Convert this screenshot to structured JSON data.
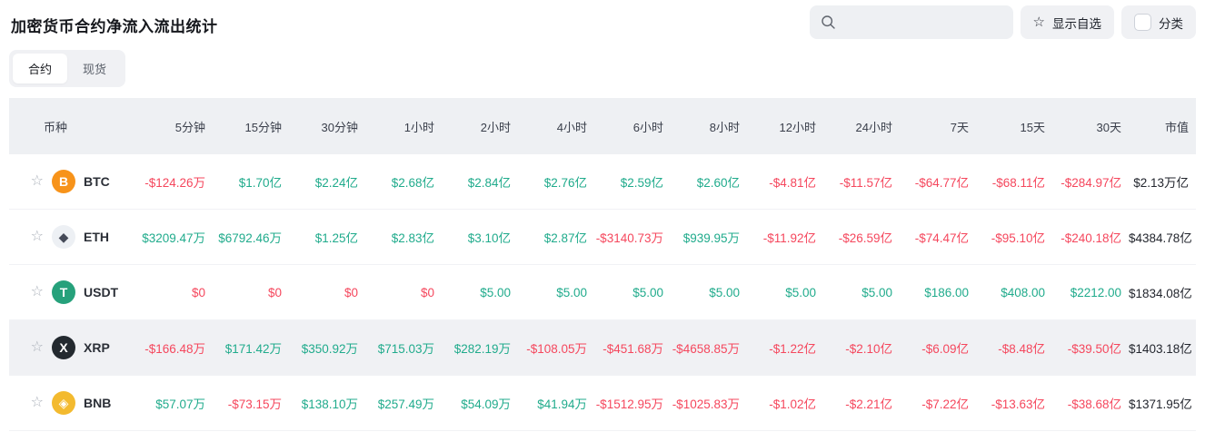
{
  "header": {
    "title": "加密货币合约净流入流出统计",
    "search": {
      "placeholder": ""
    },
    "favorites_button": "显示自选",
    "category_button": "分类"
  },
  "icons": {
    "star_outline": "☆"
  },
  "tabs": [
    {
      "label": "合约",
      "active": true
    },
    {
      "label": "现货",
      "active": false
    }
  ],
  "colors": {
    "up": "#20ab8c",
    "down": "#f5475d"
  },
  "table": {
    "columns": [
      "币种",
      "5分钟",
      "15分钟",
      "30分钟",
      "1小时",
      "2小时",
      "4小时",
      "6小时",
      "8小时",
      "12小时",
      "24小时",
      "7天",
      "15天",
      "30天",
      "市值"
    ],
    "rows": [
      {
        "symbol": "BTC",
        "icon": {
          "name": "btc-coin-icon",
          "bg": "#f7931a",
          "fg": "#ffffff",
          "glyph": "B"
        },
        "values": [
          {
            "text": "-$124.26万",
            "dir": "down"
          },
          {
            "text": "$1.70亿",
            "dir": "up"
          },
          {
            "text": "$2.24亿",
            "dir": "up"
          },
          {
            "text": "$2.68亿",
            "dir": "up"
          },
          {
            "text": "$2.84亿",
            "dir": "up"
          },
          {
            "text": "$2.76亿",
            "dir": "up"
          },
          {
            "text": "$2.59亿",
            "dir": "up"
          },
          {
            "text": "$2.60亿",
            "dir": "up"
          },
          {
            "text": "-$4.81亿",
            "dir": "down"
          },
          {
            "text": "-$11.57亿",
            "dir": "down"
          },
          {
            "text": "-$64.77亿",
            "dir": "down"
          },
          {
            "text": "-$68.11亿",
            "dir": "down"
          },
          {
            "text": "-$284.97亿",
            "dir": "down"
          }
        ],
        "market_cap": "$2.13万亿",
        "highlighted": false
      },
      {
        "symbol": "ETH",
        "icon": {
          "name": "eth-coin-icon",
          "bg": "#edf0f4",
          "fg": "#454a58",
          "glyph": "◆"
        },
        "values": [
          {
            "text": "$3209.47万",
            "dir": "up"
          },
          {
            "text": "$6792.46万",
            "dir": "up"
          },
          {
            "text": "$1.25亿",
            "dir": "up"
          },
          {
            "text": "$2.83亿",
            "dir": "up"
          },
          {
            "text": "$3.10亿",
            "dir": "up"
          },
          {
            "text": "$2.87亿",
            "dir": "up"
          },
          {
            "text": "-$3140.73万",
            "dir": "down"
          },
          {
            "text": "$939.95万",
            "dir": "up"
          },
          {
            "text": "-$11.92亿",
            "dir": "down"
          },
          {
            "text": "-$26.59亿",
            "dir": "down"
          },
          {
            "text": "-$74.47亿",
            "dir": "down"
          },
          {
            "text": "-$95.10亿",
            "dir": "down"
          },
          {
            "text": "-$240.18亿",
            "dir": "down"
          }
        ],
        "market_cap": "$4384.78亿",
        "highlighted": false
      },
      {
        "symbol": "USDT",
        "icon": {
          "name": "usdt-coin-icon",
          "bg": "#26a17b",
          "fg": "#ffffff",
          "glyph": "T"
        },
        "values": [
          {
            "text": "$0",
            "dir": "down"
          },
          {
            "text": "$0",
            "dir": "down"
          },
          {
            "text": "$0",
            "dir": "down"
          },
          {
            "text": "$0",
            "dir": "down"
          },
          {
            "text": "$5.00",
            "dir": "up"
          },
          {
            "text": "$5.00",
            "dir": "up"
          },
          {
            "text": "$5.00",
            "dir": "up"
          },
          {
            "text": "$5.00",
            "dir": "up"
          },
          {
            "text": "$5.00",
            "dir": "up"
          },
          {
            "text": "$5.00",
            "dir": "up"
          },
          {
            "text": "$186.00",
            "dir": "up"
          },
          {
            "text": "$408.00",
            "dir": "up"
          },
          {
            "text": "$2212.00",
            "dir": "up"
          }
        ],
        "market_cap": "$1834.08亿",
        "highlighted": false
      },
      {
        "symbol": "XRP",
        "icon": {
          "name": "xrp-coin-icon",
          "bg": "#23292f",
          "fg": "#ffffff",
          "glyph": "X"
        },
        "values": [
          {
            "text": "-$166.48万",
            "dir": "down"
          },
          {
            "text": "$171.42万",
            "dir": "up"
          },
          {
            "text": "$350.92万",
            "dir": "up"
          },
          {
            "text": "$715.03万",
            "dir": "up"
          },
          {
            "text": "$282.19万",
            "dir": "up"
          },
          {
            "text": "-$108.05万",
            "dir": "down"
          },
          {
            "text": "-$451.68万",
            "dir": "down"
          },
          {
            "text": "-$4658.85万",
            "dir": "down"
          },
          {
            "text": "-$1.22亿",
            "dir": "down"
          },
          {
            "text": "-$2.10亿",
            "dir": "down"
          },
          {
            "text": "-$6.09亿",
            "dir": "down"
          },
          {
            "text": "-$8.48亿",
            "dir": "down"
          },
          {
            "text": "-$39.50亿",
            "dir": "down"
          }
        ],
        "market_cap": "$1403.18亿",
        "highlighted": true
      },
      {
        "symbol": "BNB",
        "icon": {
          "name": "bnb-coin-icon",
          "bg": "#f3ba2f",
          "fg": "#ffffff",
          "glyph": "◈"
        },
        "values": [
          {
            "text": "$57.07万",
            "dir": "up"
          },
          {
            "text": "-$73.15万",
            "dir": "down"
          },
          {
            "text": "$138.10万",
            "dir": "up"
          },
          {
            "text": "$257.49万",
            "dir": "up"
          },
          {
            "text": "$54.09万",
            "dir": "up"
          },
          {
            "text": "$41.94万",
            "dir": "up"
          },
          {
            "text": "-$1512.95万",
            "dir": "down"
          },
          {
            "text": "-$1025.83万",
            "dir": "down"
          },
          {
            "text": "-$1.02亿",
            "dir": "down"
          },
          {
            "text": "-$2.21亿",
            "dir": "down"
          },
          {
            "text": "-$7.22亿",
            "dir": "down"
          },
          {
            "text": "-$13.63亿",
            "dir": "down"
          },
          {
            "text": "-$38.68亿",
            "dir": "down"
          }
        ],
        "market_cap": "$1371.95亿",
        "highlighted": false
      }
    ]
  }
}
